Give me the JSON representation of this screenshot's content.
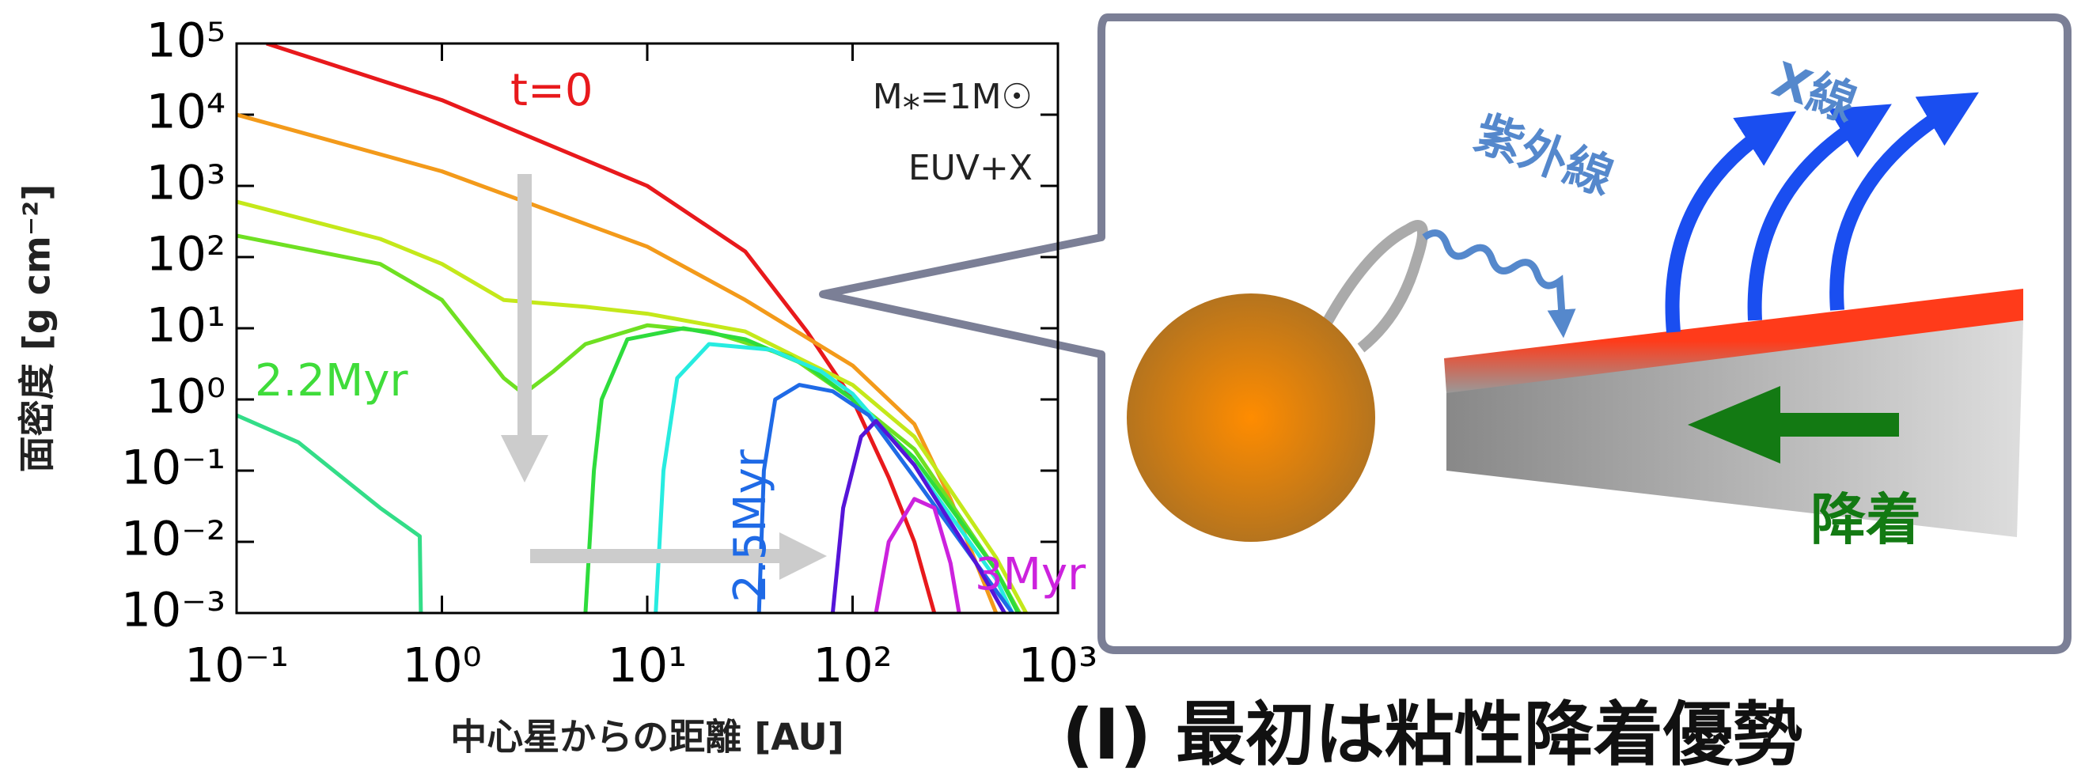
{
  "chart_data": {
    "type": "line",
    "xscale": "log",
    "yscale": "log",
    "x_label": "中心星からの距離 [AU]",
    "y_label": "面密度 [g cm⁻²]",
    "xlim": [
      0.1,
      1000
    ],
    "ylim": [
      0.001,
      100000
    ],
    "xticks": [
      {
        "value": 0.1,
        "label": "10⁻¹"
      },
      {
        "value": 1,
        "label": "10⁰"
      },
      {
        "value": 10,
        "label": "10¹"
      },
      {
        "value": 100,
        "label": "10²"
      },
      {
        "value": 1000,
        "label": "10³"
      }
    ],
    "yticks": [
      {
        "value": 0.001,
        "label": "10⁻³"
      },
      {
        "value": 0.01,
        "label": "10⁻²"
      },
      {
        "value": 0.1,
        "label": "10⁻¹"
      },
      {
        "value": 1,
        "label": "10⁰"
      },
      {
        "value": 10,
        "label": "10¹"
      },
      {
        "value": 100,
        "label": "10²"
      },
      {
        "value": 1000,
        "label": "10³"
      },
      {
        "value": 10000,
        "label": "10⁴"
      },
      {
        "value": 100000,
        "label": "10⁵"
      }
    ],
    "series": [
      {
        "color": "#e8191c",
        "x": [
          0.14,
          1,
          10,
          30,
          60,
          100,
          150,
          200,
          250
        ],
        "values": [
          100000,
          16000,
          1000,
          120,
          9,
          1,
          0.08,
          0.01,
          0.001
        ]
      },
      {
        "color": "#f39a1a",
        "x": [
          0.1,
          1,
          10,
          30,
          100,
          200,
          300,
          500
        ],
        "values": [
          10000,
          1600,
          140,
          25,
          3,
          0.45,
          0.04,
          0.001
        ]
      },
      {
        "color": "#c4e81a",
        "x": [
          0.1,
          0.5,
          1,
          2,
          5,
          10,
          30,
          100,
          200,
          500,
          700
        ],
        "values": [
          600,
          180,
          80,
          25,
          20,
          16,
          9,
          1.6,
          0.3,
          0.006,
          0.001
        ]
      },
      {
        "color": "#6fe022",
        "x": [
          0.1,
          0.5,
          1,
          2,
          2.5,
          3.5,
          5,
          10,
          20,
          50,
          100,
          200,
          500,
          650
        ],
        "values": [
          200,
          80,
          25,
          2,
          1.2,
          2.5,
          6,
          11,
          9,
          4,
          1,
          0.2,
          0.004,
          0.001
        ]
      },
      {
        "color": "#2edc3c",
        "x": [
          5,
          5.5,
          6,
          8,
          15,
          30,
          60,
          100,
          200,
          500,
          640
        ],
        "values": [
          0.001,
          0.1,
          1,
          7,
          10,
          7,
          3,
          1,
          0.15,
          0.004,
          0.001
        ]
      },
      {
        "color": "#27ece0",
        "x": [
          11,
          12,
          14,
          20,
          40,
          70,
          100,
          200,
          500,
          600
        ],
        "values": [
          0.001,
          0.1,
          2,
          6,
          5,
          2.5,
          1.2,
          0.12,
          0.003,
          0.001
        ]
      },
      {
        "color": "#1f6ae6",
        "x": [
          35,
          37,
          42,
          55,
          80,
          120,
          200,
          400,
          600
        ],
        "values": [
          0.001,
          0.1,
          1,
          1.6,
          1.3,
          0.6,
          0.08,
          0.005,
          0.001
        ]
      },
      {
        "color": "#5514d8",
        "x": [
          80,
          90,
          110,
          130,
          200,
          400,
          550
        ],
        "values": [
          0.001,
          0.03,
          0.3,
          0.5,
          0.12,
          0.005,
          0.001
        ]
      },
      {
        "color": "#cc22dd",
        "x": [
          130,
          150,
          200,
          250,
          300,
          330
        ],
        "values": [
          0.001,
          0.01,
          0.04,
          0.03,
          0.005,
          0.001
        ]
      },
      {
        "color": "#33dd88",
        "x": [
          0.1,
          0.2,
          0.5,
          0.78,
          0.79
        ],
        "values": [
          0.6,
          0.25,
          0.03,
          0.012,
          0.001
        ]
      }
    ],
    "annotations": [
      {
        "text": "t=0",
        "color": "#e8191c"
      },
      {
        "text": "2.2Myr",
        "color": "#3fdc3a"
      },
      {
        "text": "2.5Myr",
        "color": "#1f6ae6"
      },
      {
        "text": "3Myr",
        "color": "#cc22dd"
      },
      {
        "text": "M⁎=1M☉",
        "color": "#222"
      },
      {
        "text": "EUV+X",
        "color": "#222"
      }
    ]
  },
  "diagram": {
    "radiation_label_1": "X線",
    "radiation_label_2": "紫外線",
    "accretion_label": "降着",
    "caption": "(I) 最初は粘性降着優勢"
  }
}
